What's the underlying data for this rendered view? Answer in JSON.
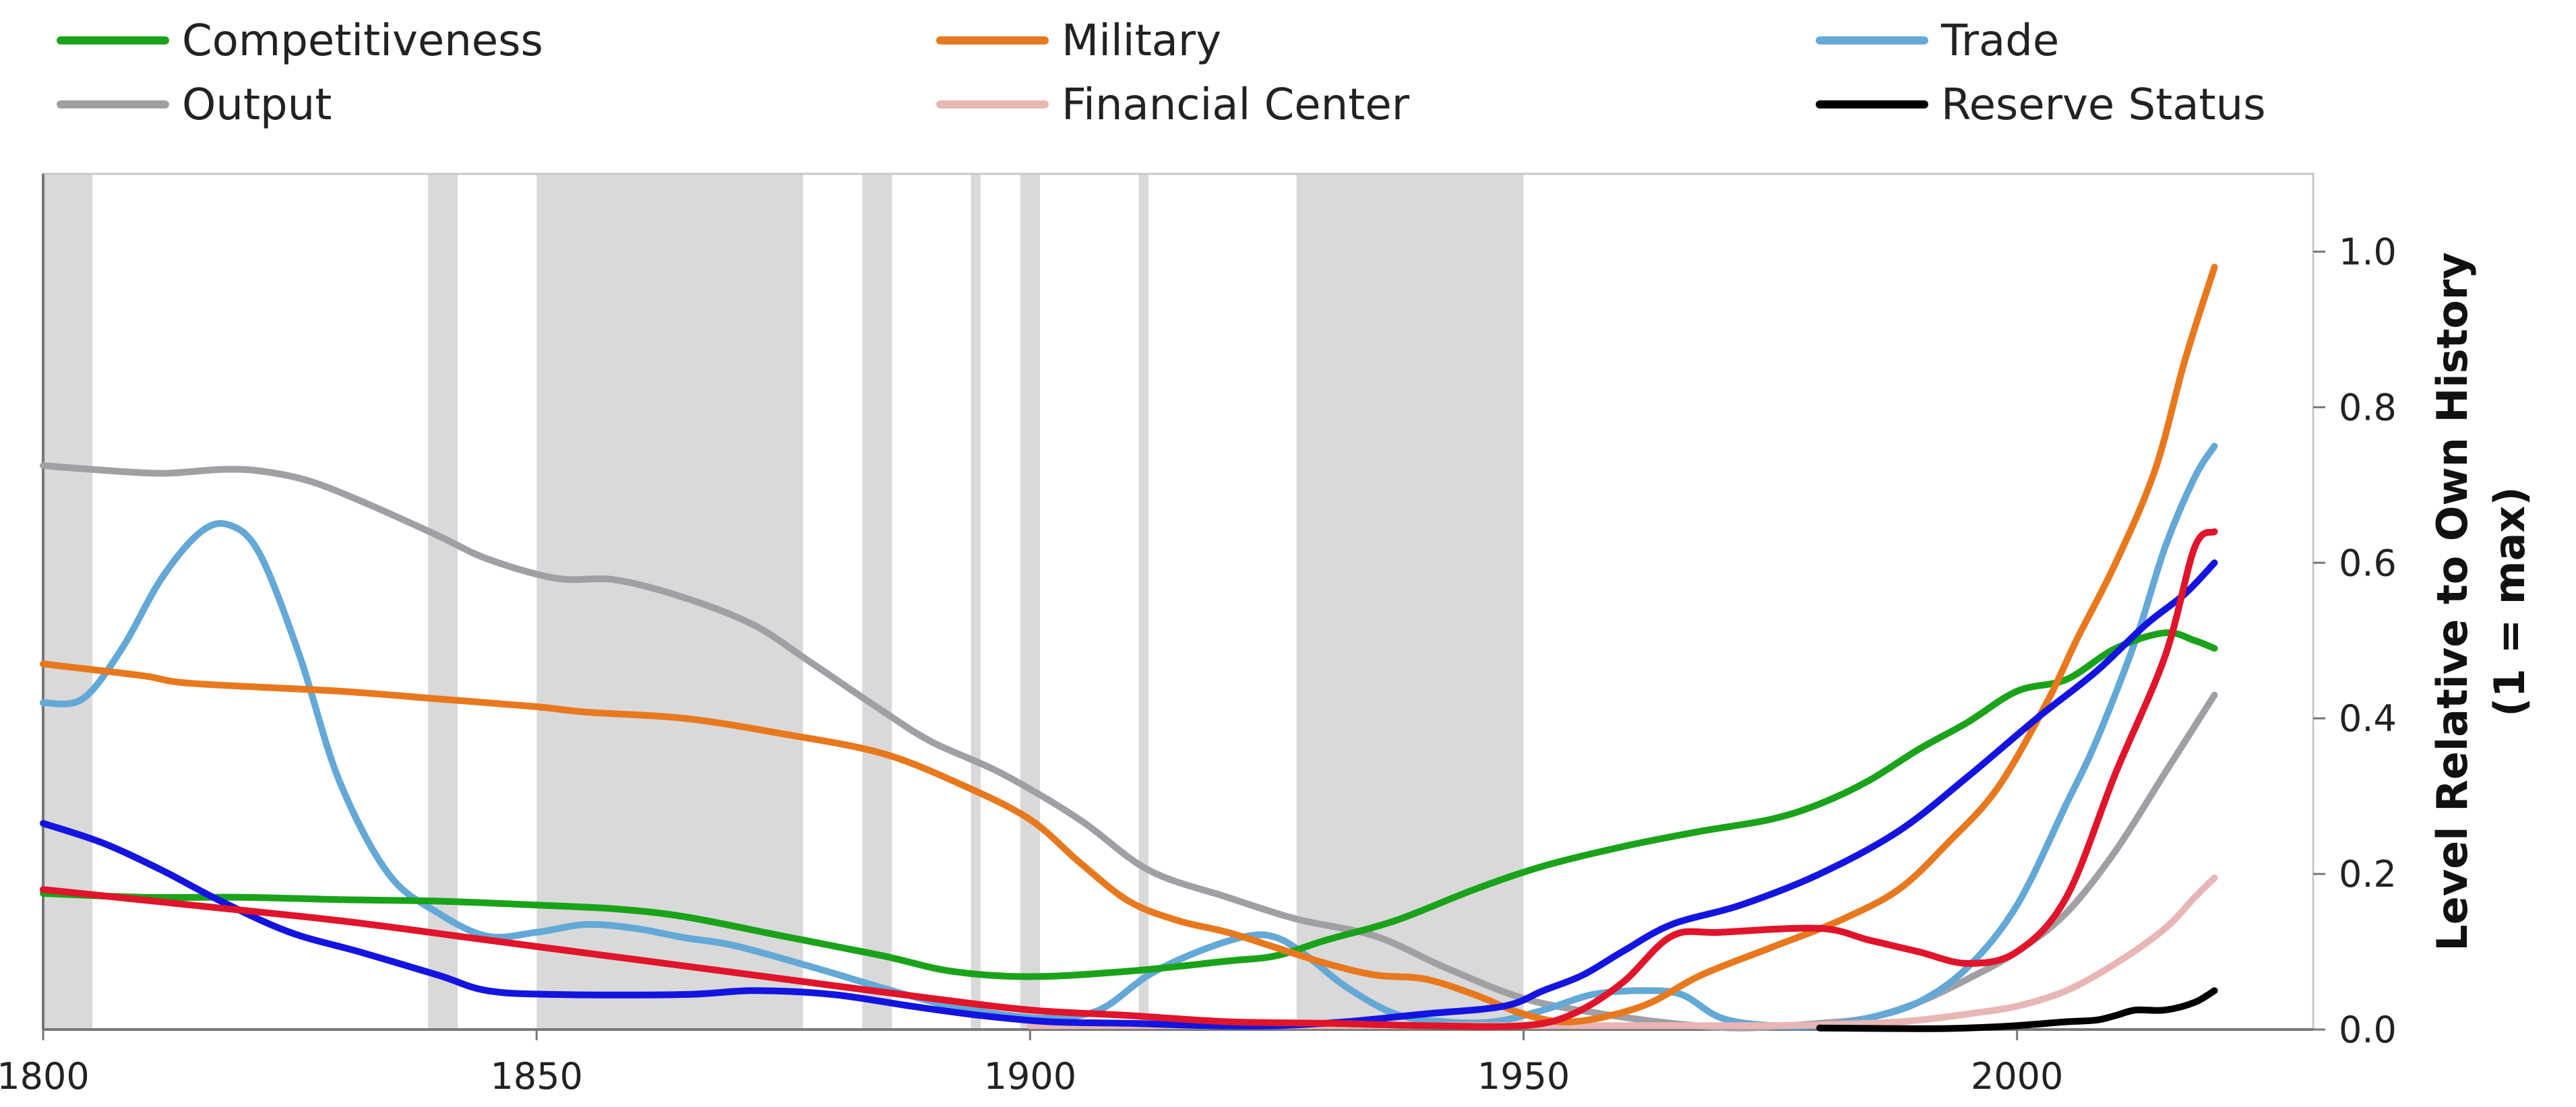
{
  "chart_data": {
    "type": "line",
    "title": "",
    "xlabel": "",
    "ylabel_line1": "Level Relative to Own History",
    "ylabel_line2": "(1 = max)",
    "xlim": [
      1800,
      2030
    ],
    "ylim": [
      0,
      1.1
    ],
    "x_ticks": [
      1800,
      1850,
      1900,
      1950,
      2000
    ],
    "y_ticks": [
      0.0,
      0.2,
      0.4,
      0.6,
      0.8,
      1.0
    ],
    "x_tick_labels": [
      "1800",
      "1850",
      "1900",
      "1950",
      "2000"
    ],
    "y_tick_labels": [
      "0.0",
      "0.2",
      "0.4",
      "0.6",
      "0.8",
      "1.0"
    ],
    "grid": false,
    "legend_position": "top",
    "shaded_periods": [
      [
        1800,
        1805
      ],
      [
        1839,
        1842
      ],
      [
        1850,
        1877
      ],
      [
        1883,
        1886
      ],
      [
        1894,
        1895
      ],
      [
        1899,
        1901
      ],
      [
        1911,
        1912
      ],
      [
        1927,
        1950
      ]
    ],
    "legend": [
      {
        "label": "Competitiveness",
        "color": "#1aa31a"
      },
      {
        "label": "Military",
        "color": "#e8781e"
      },
      {
        "label": "Trade",
        "color": "#63a8d6"
      },
      {
        "label": "Output",
        "color": "#a0a0a4"
      },
      {
        "label": "Financial Center",
        "color": "#e8b6b4"
      },
      {
        "label": "Reserve Status",
        "color": "#000000"
      }
    ],
    "series": [
      {
        "key": "competitiveness",
        "color": "#1aa31a",
        "points": [
          [
            1800,
            0.175
          ],
          [
            1810,
            0.17
          ],
          [
            1820,
            0.17
          ],
          [
            1830,
            0.167
          ],
          [
            1840,
            0.165
          ],
          [
            1850,
            0.16
          ],
          [
            1858,
            0.155
          ],
          [
            1865,
            0.145
          ],
          [
            1875,
            0.12
          ],
          [
            1885,
            0.095
          ],
          [
            1892,
            0.075
          ],
          [
            1900,
            0.068
          ],
          [
            1910,
            0.075
          ],
          [
            1920,
            0.088
          ],
          [
            1925,
            0.095
          ],
          [
            1930,
            0.115
          ],
          [
            1937,
            0.14
          ],
          [
            1945,
            0.18
          ],
          [
            1952,
            0.21
          ],
          [
            1960,
            0.235
          ],
          [
            1968,
            0.255
          ],
          [
            1975,
            0.27
          ],
          [
            1980,
            0.29
          ],
          [
            1985,
            0.32
          ],
          [
            1990,
            0.36
          ],
          [
            1995,
            0.395
          ],
          [
            2000,
            0.435
          ],
          [
            2005,
            0.45
          ],
          [
            2010,
            0.49
          ],
          [
            2015,
            0.51
          ],
          [
            2018,
            0.5
          ],
          [
            2020,
            0.49
          ]
        ]
      },
      {
        "key": "military",
        "color": "#e8781e",
        "points": [
          [
            1800,
            0.47
          ],
          [
            1810,
            0.455
          ],
          [
            1815,
            0.445
          ],
          [
            1830,
            0.435
          ],
          [
            1840,
            0.425
          ],
          [
            1850,
            0.415
          ],
          [
            1855,
            0.408
          ],
          [
            1865,
            0.4
          ],
          [
            1875,
            0.38
          ],
          [
            1885,
            0.355
          ],
          [
            1893,
            0.315
          ],
          [
            1900,
            0.27
          ],
          [
            1905,
            0.215
          ],
          [
            1910,
            0.165
          ],
          [
            1915,
            0.14
          ],
          [
            1920,
            0.125
          ],
          [
            1925,
            0.105
          ],
          [
            1930,
            0.085
          ],
          [
            1935,
            0.07
          ],
          [
            1940,
            0.065
          ],
          [
            1945,
            0.045
          ],
          [
            1950,
            0.02
          ],
          [
            1955,
            0.01
          ],
          [
            1962,
            0.03
          ],
          [
            1968,
            0.07
          ],
          [
            1975,
            0.105
          ],
          [
            1982,
            0.14
          ],
          [
            1988,
            0.18
          ],
          [
            1993,
            0.24
          ],
          [
            1998,
            0.31
          ],
          [
            2003,
            0.42
          ],
          [
            2006,
            0.5
          ],
          [
            2010,
            0.6
          ],
          [
            2014,
            0.72
          ],
          [
            2017,
            0.86
          ],
          [
            2020,
            0.98
          ]
        ]
      },
      {
        "key": "trade",
        "color": "#63a8d6",
        "points": [
          [
            1800,
            0.42
          ],
          [
            1804,
            0.425
          ],
          [
            1808,
            0.49
          ],
          [
            1812,
            0.58
          ],
          [
            1816,
            0.64
          ],
          [
            1819,
            0.648
          ],
          [
            1822,
            0.61
          ],
          [
            1826,
            0.48
          ],
          [
            1830,
            0.32
          ],
          [
            1835,
            0.2
          ],
          [
            1840,
            0.15
          ],
          [
            1845,
            0.12
          ],
          [
            1850,
            0.125
          ],
          [
            1855,
            0.135
          ],
          [
            1860,
            0.13
          ],
          [
            1865,
            0.118
          ],
          [
            1870,
            0.108
          ],
          [
            1878,
            0.08
          ],
          [
            1886,
            0.05
          ],
          [
            1892,
            0.03
          ],
          [
            1898,
            0.018
          ],
          [
            1902,
            0.015
          ],
          [
            1907,
            0.025
          ],
          [
            1912,
            0.07
          ],
          [
            1917,
            0.1
          ],
          [
            1922,
            0.12
          ],
          [
            1925,
            0.118
          ],
          [
            1928,
            0.095
          ],
          [
            1932,
            0.055
          ],
          [
            1937,
            0.02
          ],
          [
            1942,
            0.01
          ],
          [
            1947,
            0.01
          ],
          [
            1952,
            0.025
          ],
          [
            1957,
            0.045
          ],
          [
            1962,
            0.05
          ],
          [
            1966,
            0.045
          ],
          [
            1970,
            0.015
          ],
          [
            1975,
            0.005
          ],
          [
            1980,
            0.005
          ],
          [
            1985,
            0.015
          ],
          [
            1990,
            0.035
          ],
          [
            1995,
            0.08
          ],
          [
            2000,
            0.16
          ],
          [
            2005,
            0.29
          ],
          [
            2008,
            0.37
          ],
          [
            2012,
            0.5
          ],
          [
            2015,
            0.62
          ],
          [
            2018,
            0.71
          ],
          [
            2020,
            0.75
          ]
        ]
      },
      {
        "key": "output",
        "color": "#a0a0a4",
        "points": [
          [
            1800,
            0.725
          ],
          [
            1805,
            0.72
          ],
          [
            1812,
            0.715
          ],
          [
            1818,
            0.72
          ],
          [
            1822,
            0.718
          ],
          [
            1827,
            0.705
          ],
          [
            1833,
            0.675
          ],
          [
            1840,
            0.635
          ],
          [
            1845,
            0.605
          ],
          [
            1852,
            0.58
          ],
          [
            1858,
            0.578
          ],
          [
            1865,
            0.555
          ],
          [
            1872,
            0.52
          ],
          [
            1878,
            0.47
          ],
          [
            1885,
            0.41
          ],
          [
            1890,
            0.37
          ],
          [
            1897,
            0.33
          ],
          [
            1905,
            0.27
          ],
          [
            1912,
            0.205
          ],
          [
            1920,
            0.17
          ],
          [
            1927,
            0.142
          ],
          [
            1935,
            0.12
          ],
          [
            1942,
            0.08
          ],
          [
            1950,
            0.04
          ],
          [
            1958,
            0.02
          ],
          [
            1965,
            0.008
          ],
          [
            1972,
            0.002
          ],
          [
            1980,
            0.008
          ],
          [
            1985,
            0.015
          ],
          [
            1990,
            0.035
          ],
          [
            1995,
            0.065
          ],
          [
            2000,
            0.1
          ],
          [
            2005,
            0.15
          ],
          [
            2010,
            0.23
          ],
          [
            2015,
            0.33
          ],
          [
            2020,
            0.43
          ]
        ]
      },
      {
        "key": "financial_center",
        "color": "#e8b6b4",
        "points": [
          [
            1900,
            0.005
          ],
          [
            1920,
            0.005
          ],
          [
            1940,
            0.005
          ],
          [
            1960,
            0.005
          ],
          [
            1975,
            0.005
          ],
          [
            1985,
            0.008
          ],
          [
            1990,
            0.012
          ],
          [
            1995,
            0.02
          ],
          [
            2000,
            0.03
          ],
          [
            2005,
            0.05
          ],
          [
            2010,
            0.085
          ],
          [
            2015,
            0.13
          ],
          [
            2018,
            0.17
          ],
          [
            2020,
            0.195
          ]
        ]
      },
      {
        "key": "reserve_status",
        "color": "#000000",
        "points": [
          [
            1980,
            0.002
          ],
          [
            1990,
            0.001
          ],
          [
            1995,
            0.002
          ],
          [
            2000,
            0.005
          ],
          [
            2005,
            0.01
          ],
          [
            2008,
            0.012
          ],
          [
            2010,
            0.018
          ],
          [
            2012,
            0.025
          ],
          [
            2015,
            0.025
          ],
          [
            2018,
            0.035
          ],
          [
            2020,
            0.05
          ]
        ]
      },
      {
        "key": "unlabeled_blue",
        "color": "#1414e0",
        "points": [
          [
            1800,
            0.265
          ],
          [
            1806,
            0.24
          ],
          [
            1812,
            0.205
          ],
          [
            1818,
            0.165
          ],
          [
            1825,
            0.125
          ],
          [
            1832,
            0.1
          ],
          [
            1840,
            0.07
          ],
          [
            1845,
            0.05
          ],
          [
            1852,
            0.045
          ],
          [
            1865,
            0.045
          ],
          [
            1872,
            0.05
          ],
          [
            1880,
            0.045
          ],
          [
            1888,
            0.03
          ],
          [
            1895,
            0.018
          ],
          [
            1902,
            0.01
          ],
          [
            1910,
            0.008
          ],
          [
            1918,
            0.005
          ],
          [
            1925,
            0.005
          ],
          [
            1932,
            0.01
          ],
          [
            1940,
            0.02
          ],
          [
            1948,
            0.03
          ],
          [
            1952,
            0.05
          ],
          [
            1956,
            0.07
          ],
          [
            1960,
            0.1
          ],
          [
            1965,
            0.135
          ],
          [
            1972,
            0.16
          ],
          [
            1980,
            0.2
          ],
          [
            1988,
            0.255
          ],
          [
            1995,
            0.325
          ],
          [
            2002,
            0.4
          ],
          [
            2008,
            0.46
          ],
          [
            2013,
            0.52
          ],
          [
            2017,
            0.56
          ],
          [
            2020,
            0.6
          ]
        ]
      },
      {
        "key": "unlabeled_red",
        "color": "#e0142a",
        "points": [
          [
            1800,
            0.18
          ],
          [
            1815,
            0.16
          ],
          [
            1830,
            0.14
          ],
          [
            1845,
            0.115
          ],
          [
            1860,
            0.09
          ],
          [
            1875,
            0.065
          ],
          [
            1890,
            0.04
          ],
          [
            1900,
            0.025
          ],
          [
            1910,
            0.018
          ],
          [
            1920,
            0.01
          ],
          [
            1930,
            0.008
          ],
          [
            1940,
            0.005
          ],
          [
            1950,
            0.005
          ],
          [
            1955,
            0.02
          ],
          [
            1960,
            0.06
          ],
          [
            1965,
            0.12
          ],
          [
            1970,
            0.125
          ],
          [
            1980,
            0.13
          ],
          [
            1985,
            0.115
          ],
          [
            1990,
            0.1
          ],
          [
            1995,
            0.085
          ],
          [
            2000,
            0.1
          ],
          [
            2005,
            0.17
          ],
          [
            2010,
            0.33
          ],
          [
            2015,
            0.48
          ],
          [
            2018,
            0.62
          ],
          [
            2020,
            0.64
          ]
        ]
      }
    ]
  }
}
